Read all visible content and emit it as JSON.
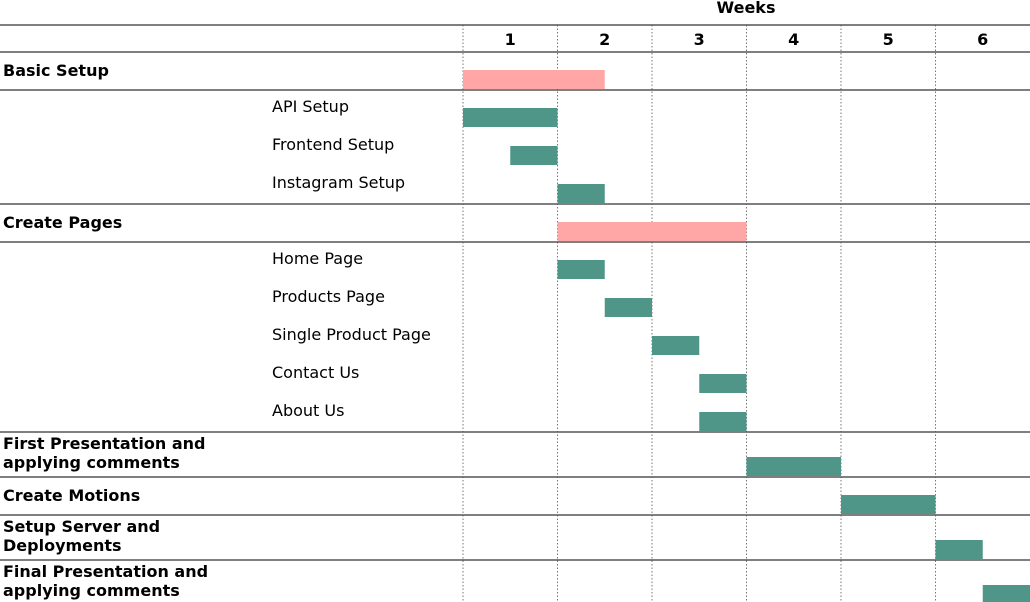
{
  "chart_data": {
    "type": "gantt",
    "x_axis_title": "Weeks",
    "weeks": [
      "1",
      "2",
      "3",
      "4",
      "5",
      "6"
    ],
    "xlim": [
      0,
      6
    ],
    "colors": {
      "phase": "#FFA6A6",
      "task": "#4F9588",
      "rule": "#555555",
      "gridline": "#777777"
    },
    "rows": [
      {
        "kind": "group",
        "label": [
          "Basic Setup"
        ],
        "bar": {
          "start": 0,
          "end": 1.5,
          "color": "phase"
        }
      },
      {
        "kind": "task",
        "label": "API Setup",
        "bar": {
          "start": 0,
          "end": 1,
          "color": "task"
        }
      },
      {
        "kind": "task",
        "label": "Frontend Setup",
        "bar": {
          "start": 0.5,
          "end": 1,
          "color": "task"
        }
      },
      {
        "kind": "task",
        "label": "Instagram Setup",
        "bar": {
          "start": 1,
          "end": 1.5,
          "color": "task"
        }
      },
      {
        "kind": "group",
        "label": [
          "Create Pages"
        ],
        "bar": {
          "start": 1,
          "end": 3,
          "color": "phase"
        }
      },
      {
        "kind": "task",
        "label": "Home Page",
        "bar": {
          "start": 1,
          "end": 1.5,
          "color": "task"
        }
      },
      {
        "kind": "task",
        "label": "Products Page",
        "bar": {
          "start": 1.5,
          "end": 2,
          "color": "task"
        }
      },
      {
        "kind": "task",
        "label": "Single Product Page",
        "bar": {
          "start": 2,
          "end": 2.5,
          "color": "task"
        }
      },
      {
        "kind": "task",
        "label": "Contact Us",
        "bar": {
          "start": 2.5,
          "end": 3,
          "color": "task"
        }
      },
      {
        "kind": "task",
        "label": "About Us",
        "bar": {
          "start": 2.5,
          "end": 3,
          "color": "task"
        }
      },
      {
        "kind": "group",
        "label": [
          "First Presentation and",
          "applying comments"
        ],
        "bar": {
          "start": 3,
          "end": 4,
          "color": "task"
        }
      },
      {
        "kind": "group",
        "label": [
          "Create Motions"
        ],
        "bar": {
          "start": 4,
          "end": 5,
          "color": "task"
        }
      },
      {
        "kind": "group",
        "label": [
          "Setup Server and",
          "Deployments"
        ],
        "bar": {
          "start": 5,
          "end": 5.5,
          "color": "task"
        }
      },
      {
        "kind": "group",
        "label": [
          "Final Presentation and",
          "applying comments"
        ],
        "bar": {
          "start": 5.5,
          "end": 6,
          "color": "task"
        }
      }
    ]
  }
}
